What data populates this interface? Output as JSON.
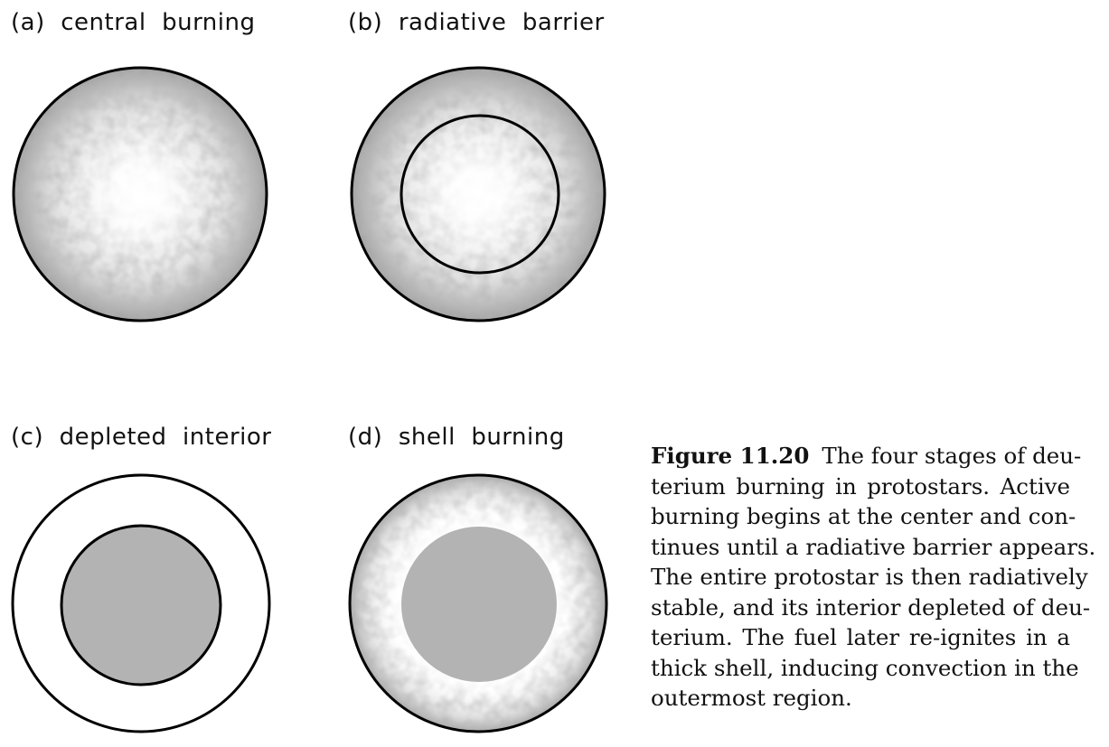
{
  "panels": {
    "a": {
      "label": "(a)  central  burning"
    },
    "b": {
      "label": "(b)  radiative  barrier"
    },
    "c": {
      "label": "(c)  depleted  interior"
    },
    "d": {
      "label": "(d)  shell  burning"
    }
  },
  "caption": {
    "title": "Figure 11.20",
    "line1": "The four stages of deu-",
    "line2": "terium burning in protostars.  Active",
    "line3": "burning begins at the center and con-",
    "line4": "tinues until a radiative barrier appears.",
    "line5": "The entire protostar is then radiatively",
    "line6": "stable, and its interior depleted of deu-",
    "line7": "terium.  The fuel later re-ignites in a",
    "line8": "thick shell, inducing convection in the",
    "line9": "outermost region."
  },
  "colors": {
    "outline": "#000000",
    "depleted_core": "#b3b3b3",
    "convective_mottle": "#6e6e6e",
    "background": "#ffffff"
  }
}
